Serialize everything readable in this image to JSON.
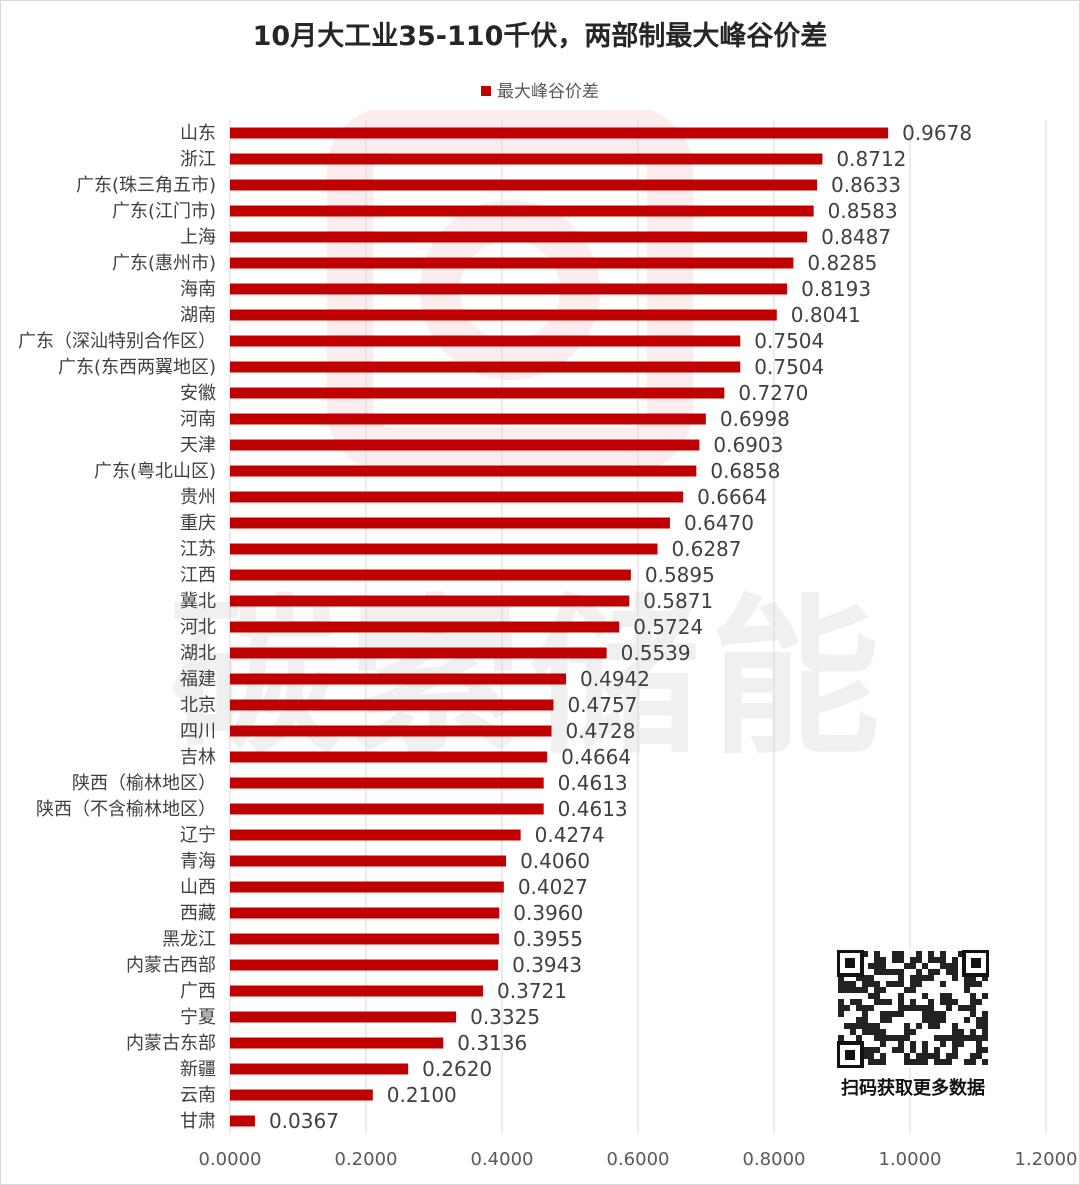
{
  "chart_data": {
    "type": "bar",
    "orientation": "horizontal",
    "title": "10月大工业35-110千伏，两部制最大峰谷价差",
    "legend": "最大峰谷价差",
    "legend_position": "top",
    "categories": [
      "山东",
      "浙江",
      "广东(珠三角五市)",
      "广东(江门市)",
      "上海",
      "广东(惠州市)",
      "海南",
      "湖南",
      "广东（深汕特别合作区）",
      "广东(东西两翼地区)",
      "安徽",
      "河南",
      "天津",
      "广东(粤北山区)",
      "贵州",
      "重庆",
      "江苏",
      "江西",
      "冀北",
      "河北",
      "湖北",
      "福建",
      "北京",
      "四川",
      "吉林",
      "陕西（榆林地区）",
      "陕西（不含榆林地区）",
      "辽宁",
      "青海",
      "山西",
      "西藏",
      "黑龙江",
      "内蒙古西部",
      "广西",
      "宁夏",
      "内蒙古东部",
      "新疆",
      "云南",
      "甘肃"
    ],
    "values": [
      0.9678,
      0.8712,
      0.8633,
      0.8583,
      0.8487,
      0.8285,
      0.8193,
      0.8041,
      0.7504,
      0.7504,
      0.727,
      0.6998,
      0.6903,
      0.6858,
      0.6664,
      0.647,
      0.6287,
      0.5895,
      0.5871,
      0.5724,
      0.5539,
      0.4942,
      0.4757,
      0.4728,
      0.4664,
      0.4613,
      0.4613,
      0.4274,
      0.406,
      0.4027,
      0.396,
      0.3955,
      0.3943,
      0.3721,
      0.3325,
      0.3136,
      0.262,
      0.21,
      0.0367
    ],
    "value_labels": [
      "0.9678",
      "0.8712",
      "0.8633",
      "0.8583",
      "0.8487",
      "0.8285",
      "0.8193",
      "0.8041",
      "0.7504",
      "0.7504",
      "0.7270",
      "0.6998",
      "0.6903",
      "0.6858",
      "0.6664",
      "0.6470",
      "0.6287",
      "0.5895",
      "0.5871",
      "0.5724",
      "0.5539",
      "0.4942",
      "0.4757",
      "0.4728",
      "0.4664",
      "0.4613",
      "0.4613",
      "0.4274",
      "0.4060",
      "0.4027",
      "0.3960",
      "0.3955",
      "0.3943",
      "0.3721",
      "0.3325",
      "0.3136",
      "0.2620",
      "0.2100",
      "0.0367"
    ],
    "xlim": [
      0,
      1.2
    ],
    "xticks": [
      0,
      0.2,
      0.4,
      0.6,
      0.8,
      1.0,
      1.2
    ],
    "xtick_labels": [
      "0.0000",
      "0.2000",
      "0.4000",
      "0.6000",
      "0.8000",
      "1.0000",
      "1.2000"
    ],
    "grid": "vertical",
    "bar_color": "#c00000"
  },
  "watermark": "碳索储能",
  "qr": {
    "caption": "扫码获取更多数据",
    "icon": "qr-code-icon"
  }
}
